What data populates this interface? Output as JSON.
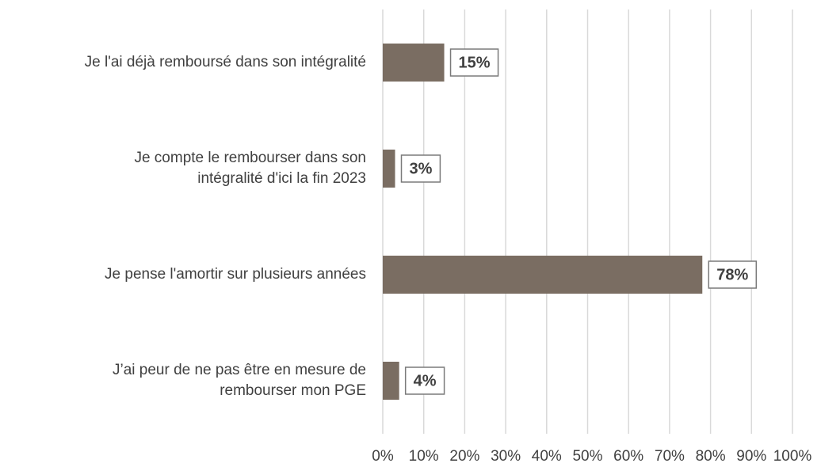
{
  "chart_data": {
    "type": "barh",
    "categories": [
      "Je l'ai déjà remboursé dans son intégralité",
      "Je compte le rembourser dans son\nintégralité d'ici la fin 2023",
      "Je pense l'amortir sur plusieurs années",
      "J’ai peur de ne pas être en mesure de\nrembourser mon PGE"
    ],
    "values": [
      15,
      3,
      78,
      4
    ],
    "value_labels": [
      "15%",
      "3%",
      "78%",
      "4%"
    ],
    "color": "#7a6d62",
    "xlim": [
      0,
      100
    ],
    "xticks": [
      {
        "value": 0,
        "label": "0%"
      },
      {
        "value": 10,
        "label": "10%"
      },
      {
        "value": 20,
        "label": "20%"
      },
      {
        "value": 30,
        "label": "30%"
      },
      {
        "value": 40,
        "label": "40%"
      },
      {
        "value": 50,
        "label": "50%"
      },
      {
        "value": 60,
        "label": "60%"
      },
      {
        "value": 70,
        "label": "70%"
      },
      {
        "value": 80,
        "label": "80%"
      },
      {
        "value": 90,
        "label": "90%"
      },
      {
        "value": 100,
        "label": "100%"
      }
    ],
    "grid": true
  }
}
